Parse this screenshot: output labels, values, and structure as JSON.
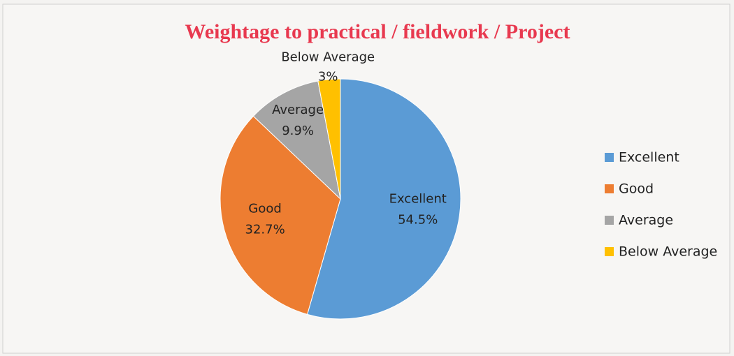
{
  "chart_data": {
    "type": "pie",
    "title": "Weightage to practical / fieldwork / Project",
    "categories": [
      "Excellent",
      "Good",
      "Average",
      "Below Average"
    ],
    "values": [
      54.5,
      32.7,
      9.9,
      3
    ],
    "value_labels": [
      "54.5%",
      "32.7%",
      "9.9%",
      "3%"
    ],
    "colors": [
      "#5b9bd5",
      "#ed7d31",
      "#a5a5a5",
      "#ffc000"
    ],
    "legend": "right"
  }
}
